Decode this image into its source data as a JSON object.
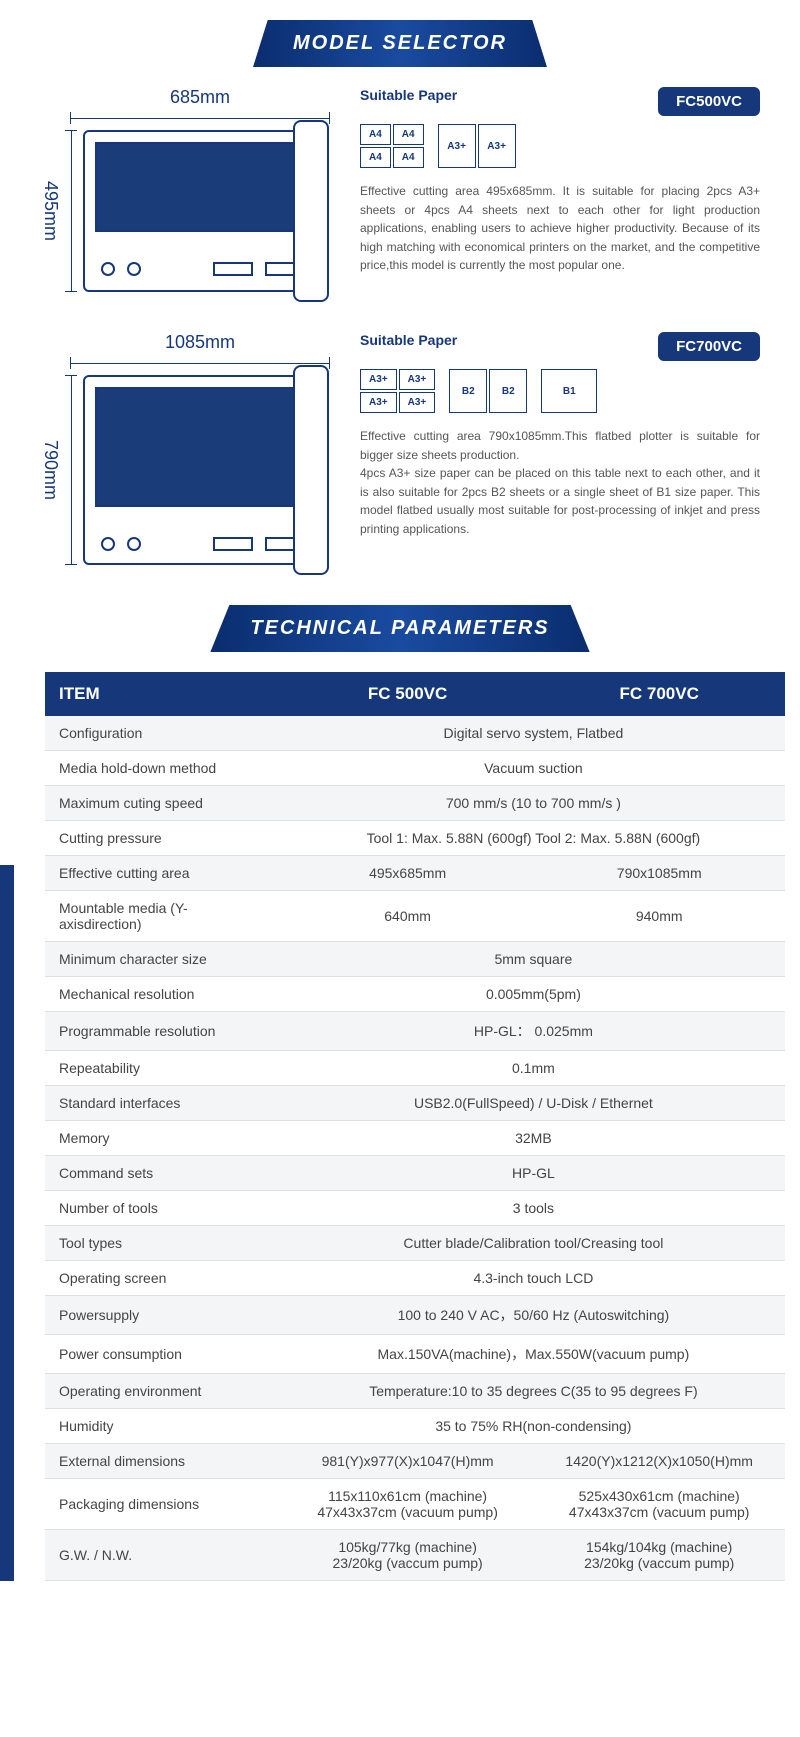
{
  "banners": {
    "selector": "MODEL SELECTOR",
    "tech": "TECHNICAL PARAMETERS"
  },
  "models": [
    {
      "width": "685mm",
      "height": "495mm",
      "badge": "FC500VC",
      "suitLabel": "Suitable Paper",
      "papers": {
        "grid": [
          "A4",
          "A4",
          "A4",
          "A4"
        ],
        "pair": [
          "A3+",
          "A3+"
        ]
      },
      "desc": "Effective cutting area 495x685mm. It is suitable for placing 2pcs A3+ sheets or 4pcs A4 sheets next to each other for light production applications, enabling users to achieve higher productivity. Because of its high matching with economical printers on the market, and the competitive price,this model is currently the most popular one."
    },
    {
      "width": "1085mm",
      "height": "790mm",
      "badge": "FC700VC",
      "suitLabel": "Suitable Paper",
      "papers": {
        "grid": [
          "A3+",
          "A3+",
          "A3+",
          "A3+"
        ],
        "pair": [
          "B2",
          "B2"
        ],
        "single": "B1"
      },
      "desc": "Effective cutting area 790x1085mm.This flatbed plotter is suitable for bigger size sheets production.\n4pcs A3+ size paper can be placed on this table next to each other, and it is also suitable for 2pcs B2 sheets or a single sheet of B1 size paper. This model flatbed usually most suitable for post-processing of inkjet and press printing applications."
    }
  ],
  "table": {
    "headers": [
      "ITEM",
      "FC 500VC",
      "FC 700VC"
    ],
    "rows": [
      {
        "l": "Configuration",
        "m": "Digital servo system, Flatbed"
      },
      {
        "l": "Media hold-down method",
        "m": "Vacuum suction"
      },
      {
        "l": "Maximum cuting speed",
        "m": "700 mm/s (10 to 700 mm/s )"
      },
      {
        "l": "Cutting pressure",
        "m": "Tool 1: Max. 5.88N (600gf)  Tool 2: Max. 5.88N (600gf)"
      },
      {
        "l": "Effective cutting area",
        "a": "495x685mm",
        "b": "790x1085mm"
      },
      {
        "l": "Mountable media (Y-axisdirection)",
        "a": "640mm",
        "b": "940mm"
      },
      {
        "l": "Minimum character size",
        "m": "5mm square"
      },
      {
        "l": "Mechanical resolution",
        "m": "0.005mm(5pm)"
      },
      {
        "l": "Programmable resolution",
        "m": "HP-GL： 0.025mm"
      },
      {
        "l": "Repeatability",
        "m": "0.1mm"
      },
      {
        "l": "Standard interfaces",
        "m": "USB2.0(FullSpeed) / U-Disk / Ethernet"
      },
      {
        "l": "Memory",
        "m": "32MB"
      },
      {
        "l": "Command sets",
        "m": "HP-GL"
      },
      {
        "l": "Number of tools",
        "m": "3 tools"
      },
      {
        "l": "Tool types",
        "m": "Cutter blade/Calibration tool/Creasing tool"
      },
      {
        "l": "Operating screen",
        "m": "4.3-inch touch LCD"
      },
      {
        "l": "Powersupply",
        "m": "100 to 240 V AC，50/60 Hz (Autoswitching)"
      },
      {
        "l": "Power consumption",
        "m": "Max.150VA(machine)，Max.550W(vacuum pump)"
      },
      {
        "l": "Operating environment",
        "m": "Temperature:10 to 35 degrees C(35 to 95 degrees F)"
      },
      {
        "l": "Humidity",
        "m": "35 to 75% RH(non-condensing)"
      },
      {
        "l": "External dimensions",
        "a": "981(Y)x977(X)x1047(H)mm",
        "b": "1420(Y)x1212(X)x1050(H)mm"
      },
      {
        "l": "Packaging dimensions",
        "a": "115x110x61cm (machine)\n47x43x37cm (vacuum pump)",
        "b": "525x430x61cm (machine)\n47x43x37cm (vacuum pump)"
      },
      {
        "l": "G.W. / N.W.",
        "a": "105kg/77kg (machine)\n23/20kg (vaccum pump)",
        "b": "154kg/104kg (machine)\n23/20kg (vaccum pump)"
      }
    ]
  }
}
